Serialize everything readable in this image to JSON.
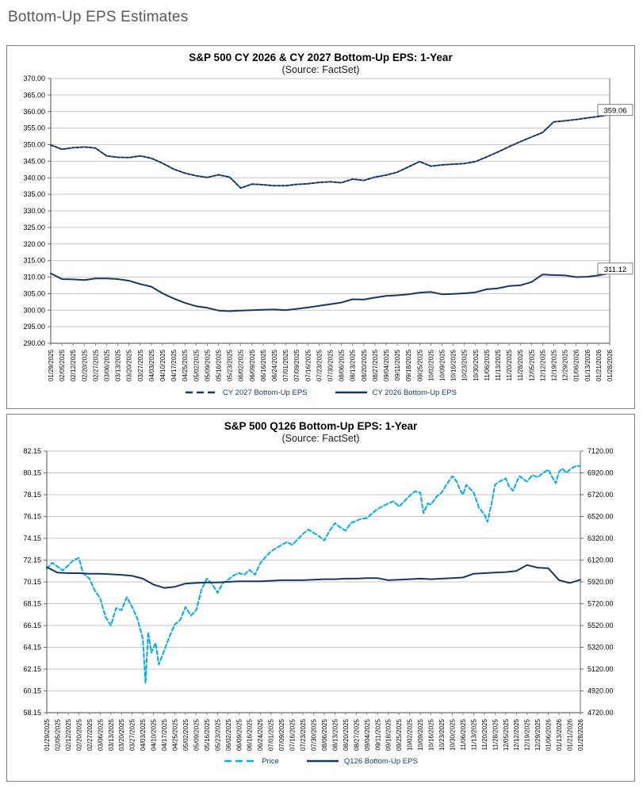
{
  "page_title": "Bottom-Up EPS Estimates",
  "colors": {
    "navy": "#17375E",
    "price_blue": "#00AEEF",
    "grid": "#c6c6c6",
    "axis": "#6b6b6b",
    "label_box_border": "#7f7f7f"
  },
  "chart_data": [
    {
      "type": "line",
      "title": "S&P 500 CY 2026 & CY 2027 Bottom-Up EPS: 1-Year",
      "subtitle": "(Source: FactSet)",
      "ylabel": "",
      "ylim": [
        290,
        370
      ],
      "y_step": 5,
      "y_decimals": 2,
      "grid": true,
      "legend_position": "bottom",
      "x_labels": [
        "01/29/2025",
        "02/05/2025",
        "02/12/2025",
        "02/20/2025",
        "02/27/2025",
        "03/06/2025",
        "03/13/2025",
        "03/20/2025",
        "03/27/2025",
        "04/03/2025",
        "04/10/2025",
        "04/17/2025",
        "04/25/2025",
        "05/02/2025",
        "05/09/2025",
        "05/16/2025",
        "05/23/2025",
        "06/02/2025",
        "06/09/2025",
        "06/16/2025",
        "06/24/2025",
        "07/01/2025",
        "07/09/2025",
        "07/16/2025",
        "07/23/2025",
        "07/30/2025",
        "08/06/2025",
        "08/13/2025",
        "08/20/2025",
        "08/27/2025",
        "09/04/2025",
        "09/11/2025",
        "09/18/2025",
        "09/25/2025",
        "10/02/2025",
        "10/09/2025",
        "10/16/2025",
        "10/23/2025",
        "10/30/2025",
        "11/06/2025",
        "11/13/2025",
        "11/20/2025",
        "11/28/2025",
        "12/05/2025",
        "12/12/2025",
        "12/19/2025",
        "12/29/2025",
        "01/06/2026",
        "01/13/2026",
        "01/21/2026",
        "01/28/2026"
      ],
      "series": [
        {
          "name": "CY 2027 Bottom-Up EPS",
          "style": "dashed",
          "color": "#17375E",
          "axis": "left",
          "end_label": "359.06",
          "values": [
            349.9,
            348.6,
            349.1,
            349.3,
            349.0,
            346.6,
            346.2,
            346.1,
            346.6,
            345.9,
            344.4,
            342.6,
            341.4,
            340.6,
            340.1,
            340.9,
            340.2,
            336.9,
            338.1,
            337.9,
            337.6,
            337.6,
            338.0,
            338.2,
            338.6,
            338.8,
            338.5,
            339.6,
            339.2,
            340.2,
            340.8,
            341.7,
            343.3,
            344.9,
            343.5,
            343.9,
            344.1,
            344.3,
            344.9,
            346.3,
            347.8,
            349.4,
            350.9,
            352.3,
            353.7,
            356.9,
            357.2,
            357.6,
            358.1,
            358.5,
            359.06
          ]
        },
        {
          "name": "CY 2026 Bottom-Up EPS",
          "style": "solid",
          "color": "#17375E",
          "axis": "left",
          "end_label": "311.12",
          "values": [
            311.1,
            309.4,
            309.3,
            309.1,
            309.6,
            309.6,
            309.4,
            308.9,
            307.9,
            307.1,
            305.1,
            303.5,
            302.2,
            301.2,
            300.7,
            299.9,
            299.7,
            299.9,
            300.0,
            300.1,
            300.2,
            300.0,
            300.4,
            300.8,
            301.3,
            301.8,
            302.3,
            303.3,
            303.2,
            303.8,
            304.3,
            304.5,
            304.8,
            305.3,
            305.5,
            304.8,
            304.9,
            305.1,
            305.4,
            306.3,
            306.6,
            307.3,
            307.5,
            308.5,
            310.8,
            310.6,
            310.5,
            310.0,
            310.1,
            310.5,
            311.12
          ]
        }
      ]
    },
    {
      "type": "line",
      "title": "S&P 500 Q126 Bottom-Up EPS: 1-Year",
      "subtitle": "(Source: FactSet)",
      "ylabel": "",
      "ylim": [
        58.15,
        82.15
      ],
      "y_step": 2,
      "y_decimals": 2,
      "ylim_right": [
        4720,
        7120
      ],
      "y_step_right": 200,
      "y_decimals_right": 2,
      "grid": true,
      "legend_position": "bottom",
      "x_labels": [
        "01/29/2025",
        "02/05/2025",
        "02/12/2025",
        "02/20/2025",
        "02/27/2025",
        "03/06/2025",
        "03/13/2025",
        "03/20/2025",
        "03/27/2025",
        "04/03/2025",
        "04/10/2025",
        "04/17/2025",
        "04/25/2025",
        "05/02/2025",
        "05/09/2025",
        "05/16/2025",
        "05/23/2025",
        "06/02/2025",
        "06/09/2025",
        "06/16/2025",
        "06/24/2025",
        "07/01/2025",
        "07/09/2025",
        "07/16/2025",
        "07/23/2025",
        "07/30/2025",
        "08/06/2025",
        "08/13/2025",
        "08/20/2025",
        "08/27/2025",
        "09/04/2025",
        "09/11/2025",
        "09/18/2025",
        "09/25/2025",
        "10/02/2025",
        "10/09/2025",
        "10/16/2025",
        "10/23/2025",
        "10/30/2025",
        "11/06/2025",
        "11/13/2025",
        "11/20/2025",
        "11/28/2025",
        "12/05/2025",
        "12/12/2025",
        "12/19/2025",
        "12/29/2025",
        "01/06/2026",
        "01/13/2026",
        "01/21/2026",
        "01/28/2026"
      ],
      "series": [
        {
          "name": "Price",
          "style": "dashed",
          "color": "#00AEEF",
          "axis": "right",
          "points": [
            [
              0,
              6040
            ],
            [
              0.5,
              6095
            ],
            [
              1,
              6060
            ],
            [
              1.5,
              6025
            ],
            [
              2,
              6070
            ],
            [
              2.5,
              6120
            ],
            [
              3,
              6140
            ],
            [
              3.4,
              6000
            ],
            [
              4,
              5950
            ],
            [
              4.5,
              5840
            ],
            [
              5,
              5770
            ],
            [
              5.5,
              5600
            ],
            [
              6,
              5520
            ],
            [
              6.5,
              5680
            ],
            [
              7,
              5660
            ],
            [
              7.5,
              5780
            ],
            [
              8,
              5690
            ],
            [
              8.5,
              5580
            ],
            [
              9,
              5400
            ],
            [
              9.25,
              4990
            ],
            [
              9.5,
              5460
            ],
            [
              9.8,
              5270
            ],
            [
              10.2,
              5360
            ],
            [
              10.5,
              5160
            ],
            [
              11,
              5290
            ],
            [
              11.5,
              5420
            ],
            [
              12,
              5530
            ],
            [
              12.5,
              5570
            ],
            [
              13,
              5690
            ],
            [
              13.5,
              5610
            ],
            [
              14,
              5660
            ],
            [
              14.5,
              5850
            ],
            [
              15,
              5950
            ],
            [
              15.5,
              5900
            ],
            [
              16,
              5820
            ],
            [
              16.5,
              5910
            ],
            [
              17,
              5940
            ],
            [
              17.5,
              5980
            ],
            [
              18,
              6000
            ],
            [
              18.5,
              5985
            ],
            [
              19,
              6030
            ],
            [
              19.5,
              5985
            ],
            [
              20,
              6090
            ],
            [
              20.5,
              6150
            ],
            [
              21,
              6200
            ],
            [
              21.5,
              6230
            ],
            [
              22,
              6260
            ],
            [
              22.5,
              6285
            ],
            [
              23,
              6260
            ],
            [
              23.5,
              6310
            ],
            [
              24,
              6360
            ],
            [
              24.5,
              6400
            ],
            [
              25,
              6370
            ],
            [
              25.5,
              6340
            ],
            [
              26,
              6300
            ],
            [
              26.5,
              6390
            ],
            [
              27,
              6460
            ],
            [
              27.5,
              6420
            ],
            [
              28,
              6390
            ],
            [
              28.5,
              6460
            ],
            [
              29,
              6480
            ],
            [
              29.5,
              6500
            ],
            [
              30,
              6505
            ],
            [
              30.5,
              6550
            ],
            [
              31,
              6590
            ],
            [
              31.5,
              6615
            ],
            [
              32,
              6640
            ],
            [
              32.5,
              6660
            ],
            [
              33,
              6610
            ],
            [
              33.5,
              6660
            ],
            [
              34,
              6710
            ],
            [
              34.5,
              6750
            ],
            [
              35,
              6740
            ],
            [
              35.3,
              6550
            ],
            [
              35.7,
              6640
            ],
            [
              36,
              6630
            ],
            [
              36.5,
              6700
            ],
            [
              37,
              6740
            ],
            [
              37.5,
              6820
            ],
            [
              38,
              6890
            ],
            [
              38.4,
              6840
            ],
            [
              38.7,
              6770
            ],
            [
              39,
              6720
            ],
            [
              39.3,
              6810
            ],
            [
              39.7,
              6770
            ],
            [
              40,
              6740
            ],
            [
              40.5,
              6600
            ],
            [
              41,
              6540
            ],
            [
              41.3,
              6470
            ],
            [
              41.7,
              6650
            ],
            [
              42,
              6810
            ],
            [
              42.5,
              6845
            ],
            [
              43,
              6870
            ],
            [
              43.3,
              6800
            ],
            [
              43.7,
              6755
            ],
            [
              44,
              6830
            ],
            [
              44.3,
              6890
            ],
            [
              44.7,
              6860
            ],
            [
              45,
              6840
            ],
            [
              45.5,
              6900
            ],
            [
              46,
              6880
            ],
            [
              46.5,
              6920
            ],
            [
              47,
              6950
            ],
            [
              47.3,
              6890
            ],
            [
              47.7,
              6825
            ],
            [
              48,
              6930
            ],
            [
              48.3,
              6960
            ],
            [
              48.7,
              6920
            ],
            [
              49,
              6950
            ],
            [
              49.5,
              6980
            ],
            [
              50,
              6985
            ]
          ]
        },
        {
          "name": "Q126 Bottom-Up EPS",
          "style": "solid",
          "color": "#17375E",
          "axis": "left",
          "values": [
            71.5,
            71.0,
            70.95,
            70.95,
            70.9,
            70.9,
            70.85,
            70.8,
            70.7,
            70.45,
            69.9,
            69.6,
            69.7,
            70.0,
            70.05,
            70.1,
            70.1,
            70.15,
            70.2,
            70.2,
            70.2,
            70.25,
            70.3,
            70.3,
            70.3,
            70.35,
            70.4,
            70.4,
            70.45,
            70.45,
            70.5,
            70.5,
            70.3,
            70.35,
            70.4,
            70.45,
            70.4,
            70.45,
            70.5,
            70.55,
            70.9,
            70.95,
            71.0,
            71.05,
            71.15,
            71.7,
            71.45,
            71.4,
            70.3,
            70.05,
            70.35
          ]
        }
      ]
    }
  ]
}
